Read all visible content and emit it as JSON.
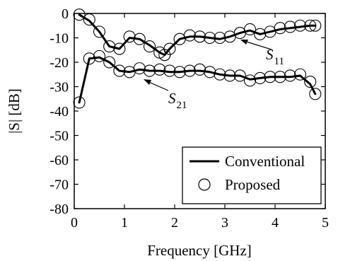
{
  "chart_data": {
    "type": "line",
    "xlabel": "Frequency [GHz]",
    "ylabel": "|S| [dB]",
    "xlim": [
      0,
      5
    ],
    "ylim": [
      -80,
      0
    ],
    "xticks": [
      0,
      1,
      2,
      3,
      4,
      5
    ],
    "yticks": [
      0,
      -10,
      -20,
      -30,
      -40,
      -50,
      -60,
      -70,
      -80
    ],
    "xtick_labels": [
      "0",
      "1",
      "2",
      "3",
      "4",
      "5"
    ],
    "ytick_labels": [
      "0",
      "-10",
      "-20",
      "-30",
      "-40",
      "-50",
      "-60",
      "-70",
      "-80"
    ],
    "grid": false,
    "legend": {
      "placement": "bottom-right",
      "entries": [
        {
          "label": "Conventional",
          "marker": "line"
        },
        {
          "label": "Proposed",
          "marker": "open-circle"
        }
      ]
    },
    "annotations": [
      {
        "main": "S",
        "sub": "11",
        "target": [
          3.2,
          -8.0
        ]
      },
      {
        "main": "S",
        "sub": "21",
        "target": [
          1.5,
          -24.5
        ]
      }
    ],
    "series": [
      {
        "role": "S11 conventional",
        "style": "line",
        "x": [
          0.1,
          0.3,
          0.5,
          0.7,
          0.9,
          1.1,
          1.3,
          1.5,
          1.7,
          1.8,
          1.9,
          2.1,
          2.3,
          2.5,
          2.7,
          2.9,
          3.1,
          3.3,
          3.5,
          3.7,
          3.9,
          4.1,
          4.3,
          4.5,
          4.7,
          4.8
        ],
        "y": [
          -0.5,
          -3.0,
          -7.5,
          -13.5,
          -14.5,
          -10.0,
          -10.5,
          -13.0,
          -16.0,
          -17.0,
          -14.5,
          -10.5,
          -9.5,
          -9.5,
          -10.0,
          -10.5,
          -9.5,
          -8.0,
          -7.0,
          -8.5,
          -7.5,
          -6.5,
          -6.0,
          -5.5,
          -5.0,
          -5.0
        ]
      },
      {
        "role": "S11 proposed",
        "style": "circles",
        "x": [
          0.1,
          0.3,
          0.5,
          0.7,
          0.9,
          1.1,
          1.3,
          1.5,
          1.7,
          1.8,
          1.9,
          2.1,
          2.3,
          2.5,
          2.7,
          2.9,
          3.1,
          3.3,
          3.5,
          3.7,
          3.9,
          4.1,
          4.3,
          4.5,
          4.7,
          4.8
        ],
        "y": [
          -0.5,
          -2.5,
          -7.5,
          -13.5,
          -14.5,
          -9.5,
          -10.5,
          -13.5,
          -16.0,
          -17.0,
          -14.5,
          -10.5,
          -9.0,
          -9.5,
          -10.0,
          -10.0,
          -9.5,
          -8.0,
          -6.5,
          -8.5,
          -7.5,
          -6.0,
          -5.5,
          -5.0,
          -5.0,
          -5.0
        ]
      },
      {
        "role": "S21 conventional",
        "style": "line",
        "x": [
          0.1,
          0.3,
          0.5,
          0.7,
          0.9,
          1.1,
          1.3,
          1.5,
          1.7,
          1.9,
          2.1,
          2.3,
          2.5,
          2.7,
          2.9,
          3.1,
          3.3,
          3.5,
          3.7,
          3.9,
          4.1,
          4.3,
          4.5,
          4.7,
          4.8
        ],
        "y": [
          -36.5,
          -18.5,
          -18.0,
          -20.0,
          -23.5,
          -24.0,
          -23.0,
          -23.5,
          -23.5,
          -24.0,
          -24.0,
          -23.5,
          -23.5,
          -24.0,
          -25.0,
          -25.5,
          -25.5,
          -27.0,
          -26.5,
          -26.0,
          -26.0,
          -26.0,
          -25.5,
          -29.0,
          -33.0
        ]
      },
      {
        "role": "S21 proposed",
        "style": "circles",
        "x": [
          0.1,
          0.3,
          0.5,
          0.7,
          0.9,
          1.1,
          1.3,
          1.5,
          1.7,
          1.9,
          2.1,
          2.3,
          2.5,
          2.7,
          2.9,
          3.1,
          3.3,
          3.5,
          3.7,
          3.9,
          4.1,
          4.3,
          4.5,
          4.7,
          4.8
        ],
        "y": [
          -36.5,
          -18.5,
          -17.5,
          -20.0,
          -23.5,
          -24.0,
          -22.5,
          -23.5,
          -23.0,
          -23.5,
          -24.0,
          -23.5,
          -23.0,
          -24.0,
          -25.0,
          -25.5,
          -25.5,
          -27.5,
          -26.5,
          -26.0,
          -26.0,
          -25.5,
          -25.0,
          -28.0,
          -33.0
        ]
      }
    ]
  }
}
